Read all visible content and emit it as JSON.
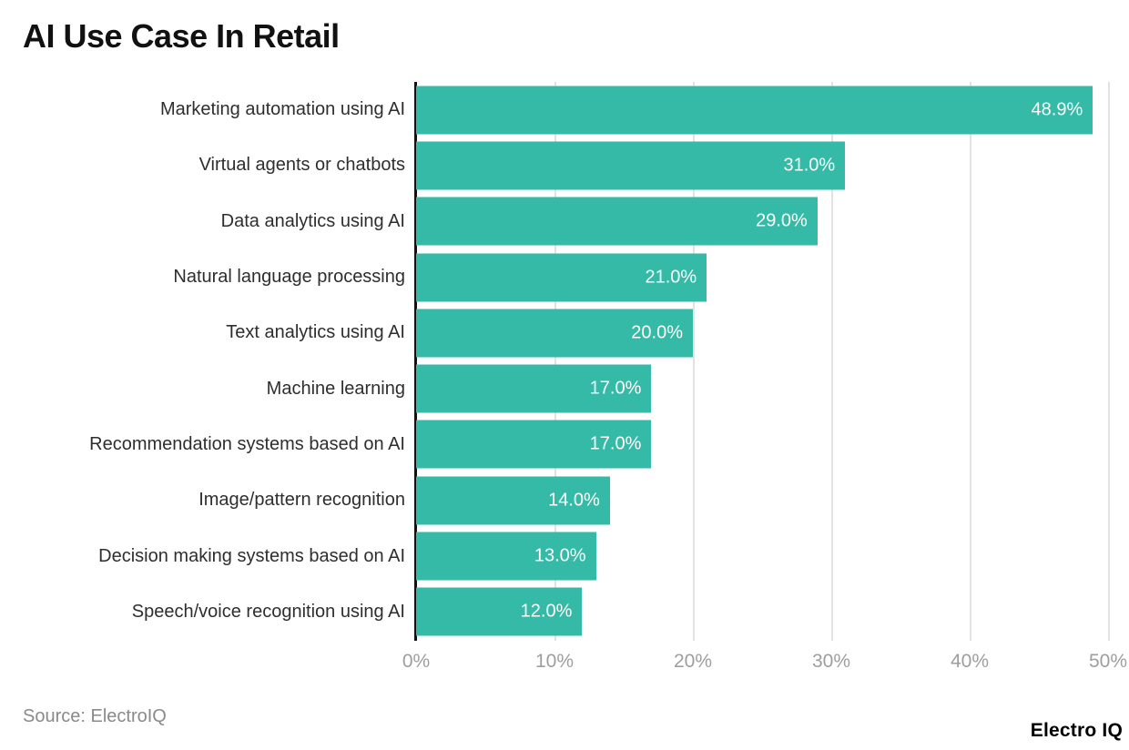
{
  "chart_data": {
    "type": "bar",
    "orientation": "horizontal",
    "title": "AI Use Case In Retail",
    "categories": [
      "Marketing automation using AI",
      "Virtual agents or chatbots",
      "Data analytics using AI",
      "Natural language processing",
      "Text analytics using AI",
      "Machine learning",
      "Recommendation systems based on AI",
      "Image/pattern recognition",
      "Decision making systems based on AI",
      "Speech/voice recognition using AI"
    ],
    "values": [
      48.9,
      31.0,
      29.0,
      21.0,
      20.0,
      17.0,
      17.0,
      14.0,
      13.0,
      12.0
    ],
    "value_labels": [
      "48.9%",
      "31.0%",
      "29.0%",
      "21.0%",
      "20.0%",
      "17.0%",
      "17.0%",
      "14.0%",
      "13.0%",
      "12.0%"
    ],
    "x_ticks": [
      "0%",
      "10%",
      "20%",
      "30%",
      "40%",
      "50%"
    ],
    "xlim": [
      0,
      50
    ],
    "grid": true,
    "legend": false,
    "value_label_position": "inside-end"
  },
  "colors": {
    "bar": "#35baa8",
    "title": "#111111",
    "category_label": "#2e2e2e",
    "value_label": "#ffffff",
    "axis_tick_label": "#9e9e9e",
    "gridline": "#e2e2e2",
    "axis_line": "#111111",
    "background": "#ffffff"
  },
  "footer": {
    "source": "Source: ElectroIQ",
    "brand": "Electro IQ"
  }
}
